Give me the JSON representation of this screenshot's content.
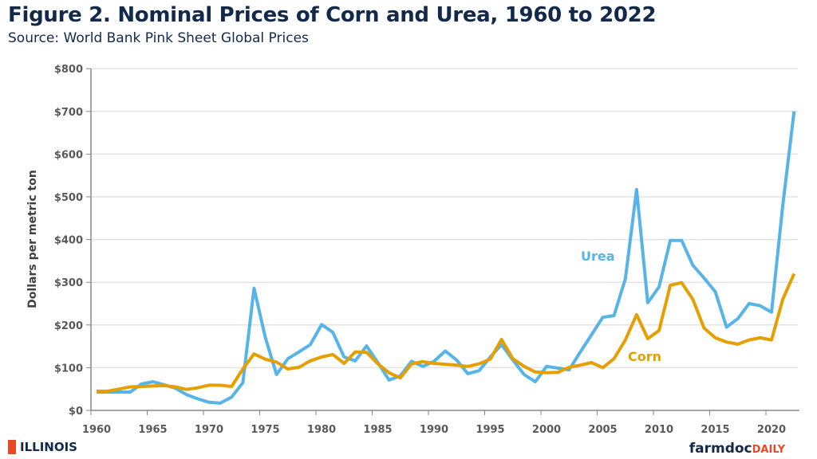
{
  "chart_data": {
    "type": "line",
    "title": "Figure 2. Nominal Prices of Corn and Urea, 1960 to 2022",
    "subtitle": "Source: World Bank Pink Sheet Global Prices",
    "xlabel": "",
    "ylabel": "Dollars per metric ton",
    "xlim": [
      1960,
      2023
    ],
    "ylim": [
      0,
      800
    ],
    "yticks": [
      0,
      100,
      200,
      300,
      400,
      500,
      600,
      700,
      800
    ],
    "ytick_labels": [
      "$0",
      "$100",
      "$200",
      "$300",
      "$400",
      "$500",
      "$600",
      "$700",
      "$800"
    ],
    "xticks": [
      1960,
      1965,
      1970,
      1975,
      1980,
      1985,
      1990,
      1995,
      2000,
      2005,
      2010,
      2015,
      2020
    ],
    "grid": true,
    "x": [
      1960,
      1961,
      1962,
      1963,
      1964,
      1965,
      1966,
      1967,
      1968,
      1969,
      1970,
      1971,
      1972,
      1973,
      1974,
      1975,
      1976,
      1977,
      1978,
      1979,
      1980,
      1981,
      1982,
      1983,
      1984,
      1985,
      1986,
      1987,
      1988,
      1989,
      1990,
      1991,
      1992,
      1993,
      1994,
      1995,
      1996,
      1997,
      1998,
      1999,
      2000,
      2001,
      2002,
      2003,
      2004,
      2005,
      2006,
      2007,
      2008,
      2009,
      2010,
      2011,
      2012,
      2013,
      2014,
      2015,
      2016,
      2017,
      2018,
      2019,
      2020,
      2021,
      2022
    ],
    "series": [
      {
        "name": "Urea",
        "color": "#56b4e9",
        "values": [
          43,
          43,
          43,
          43,
          62,
          67,
          60,
          52,
          37,
          27,
          19,
          17,
          31,
          65,
          286,
          171,
          84,
          121,
          137,
          154,
          201,
          183,
          125,
          116,
          151,
          112,
          71,
          81,
          115,
          103,
          115,
          139,
          118,
          86,
          93,
          125,
          154,
          118,
          84,
          67,
          103,
          99,
          95,
          137,
          177,
          218,
          222,
          308,
          517,
          252,
          289,
          398,
          398,
          340,
          310,
          278,
          195,
          215,
          250,
          245,
          230,
          480,
          700
        ]
      },
      {
        "name": "Corn",
        "color": "#e69f00",
        "values": [
          45,
          45,
          50,
          55,
          56,
          57,
          58,
          55,
          49,
          53,
          59,
          59,
          56,
          97,
          132,
          120,
          113,
          97,
          101,
          116,
          125,
          131,
          110,
          137,
          136,
          109,
          88,
          76,
          109,
          114,
          110,
          108,
          106,
          103,
          109,
          120,
          166,
          121,
          103,
          90,
          88,
          89,
          101,
          106,
          112,
          100,
          121,
          165,
          224,
          168,
          187,
          293,
          299,
          260,
          193,
          170,
          160,
          155,
          165,
          170,
          165,
          260,
          320
        ]
      }
    ]
  },
  "footer": {
    "left_logo": "ILLINOIS",
    "right_logo_main": "farmdoc",
    "right_logo_accent": "DAILY"
  }
}
